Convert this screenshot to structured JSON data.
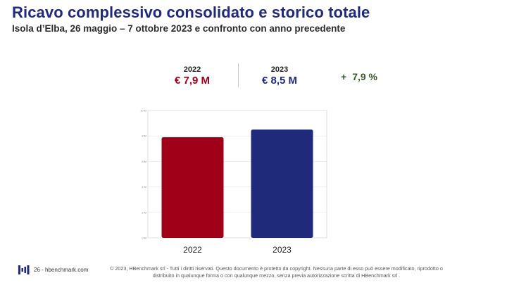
{
  "header": {
    "title": "Ricavo complessivo consolidato e storico totale",
    "subtitle": "Isola d’Elba, 26 maggio – 7 ottobre 2023 e confronto con anno precedente"
  },
  "kpis": {
    "y2022": {
      "year": "2022",
      "value": "€ 7,9 M"
    },
    "y2023": {
      "year": "2023",
      "value": "€ 8,5 M"
    },
    "delta_sign": "+",
    "delta_value": "7,9 %"
  },
  "colors": {
    "title": "#1f2a7a",
    "bar_2022": "#a00018",
    "bar_2023": "#1f2a7a",
    "delta": "#3a5a2a"
  },
  "chart_data": {
    "type": "bar",
    "categories": [
      "2022",
      "2023"
    ],
    "values": [
      7.9,
      8.5
    ],
    "colors": [
      "#a00018",
      "#1f2a7a"
    ],
    "ylim": [
      0,
      10
    ],
    "yticks": [
      0,
      2,
      4,
      6,
      8,
      10
    ],
    "ytick_labels": [
      "0 M",
      "2 M",
      "4 M",
      "6 M",
      "8 M",
      "10 M"
    ],
    "grid": true,
    "title": "",
    "xlabel": "",
    "ylabel": ""
  },
  "footer": {
    "site": "26 - hbenchmark.com",
    "copyright": "© 2023, HBenchmark srl - Tutti i diritti riservati. Questo documento è protetto da copyright. Nessuna parte di esso può essere modificato, riprodotto o distribuito in qualunque forma o con qualunque mezzo, senza previa autorizzazione scritta di HBenchmark srl ."
  }
}
